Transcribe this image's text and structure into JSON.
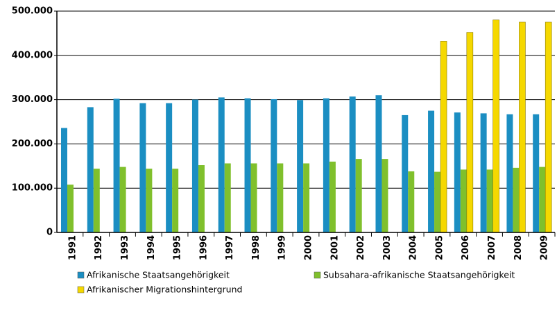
{
  "chart_data": {
    "type": "bar",
    "categories": [
      "1991",
      "1992",
      "1993",
      "1994",
      "1995",
      "1996",
      "1997",
      "1998",
      "1999",
      "2000",
      "2001",
      "2002",
      "2003",
      "2004",
      "2005",
      "2006",
      "2007",
      "2008",
      "2009"
    ],
    "series": [
      {
        "name": "Afrikanische Staatsangehörigkeit",
        "color": "#1b8ec2",
        "values": [
          236000,
          283000,
          302000,
          292000,
          292000,
          300000,
          305000,
          303000,
          301000,
          299000,
          303000,
          307000,
          310000,
          265000,
          275000,
          271000,
          269000,
          267000,
          267000
        ]
      },
      {
        "name": "Subsahara-afrikanische Staatsangehörigkeit",
        "color": "#80c02c",
        "values": [
          108000,
          144000,
          148000,
          144000,
          144000,
          152000,
          156000,
          156000,
          156000,
          156000,
          160000,
          166000,
          166000,
          138000,
          137000,
          142000,
          142000,
          146000,
          148000
        ]
      },
      {
        "name": "Afrikanischer Migrationshintergrund",
        "color": "#f5d800",
        "values": [
          null,
          null,
          null,
          null,
          null,
          null,
          null,
          null,
          null,
          null,
          null,
          null,
          null,
          null,
          432000,
          452000,
          480000,
          475000,
          475000
        ]
      }
    ],
    "ylim": [
      0,
      500000
    ],
    "yticks": [
      0,
      {
        "value": 100000,
        "label": "100.000"
      },
      {
        "value": 200000,
        "label": "200.000"
      },
      {
        "value": 300000,
        "label": "300.000"
      },
      {
        "value": 400000,
        "label": "400.000"
      },
      {
        "value": 500000,
        "label": "500.000"
      }
    ],
    "grid": true
  }
}
